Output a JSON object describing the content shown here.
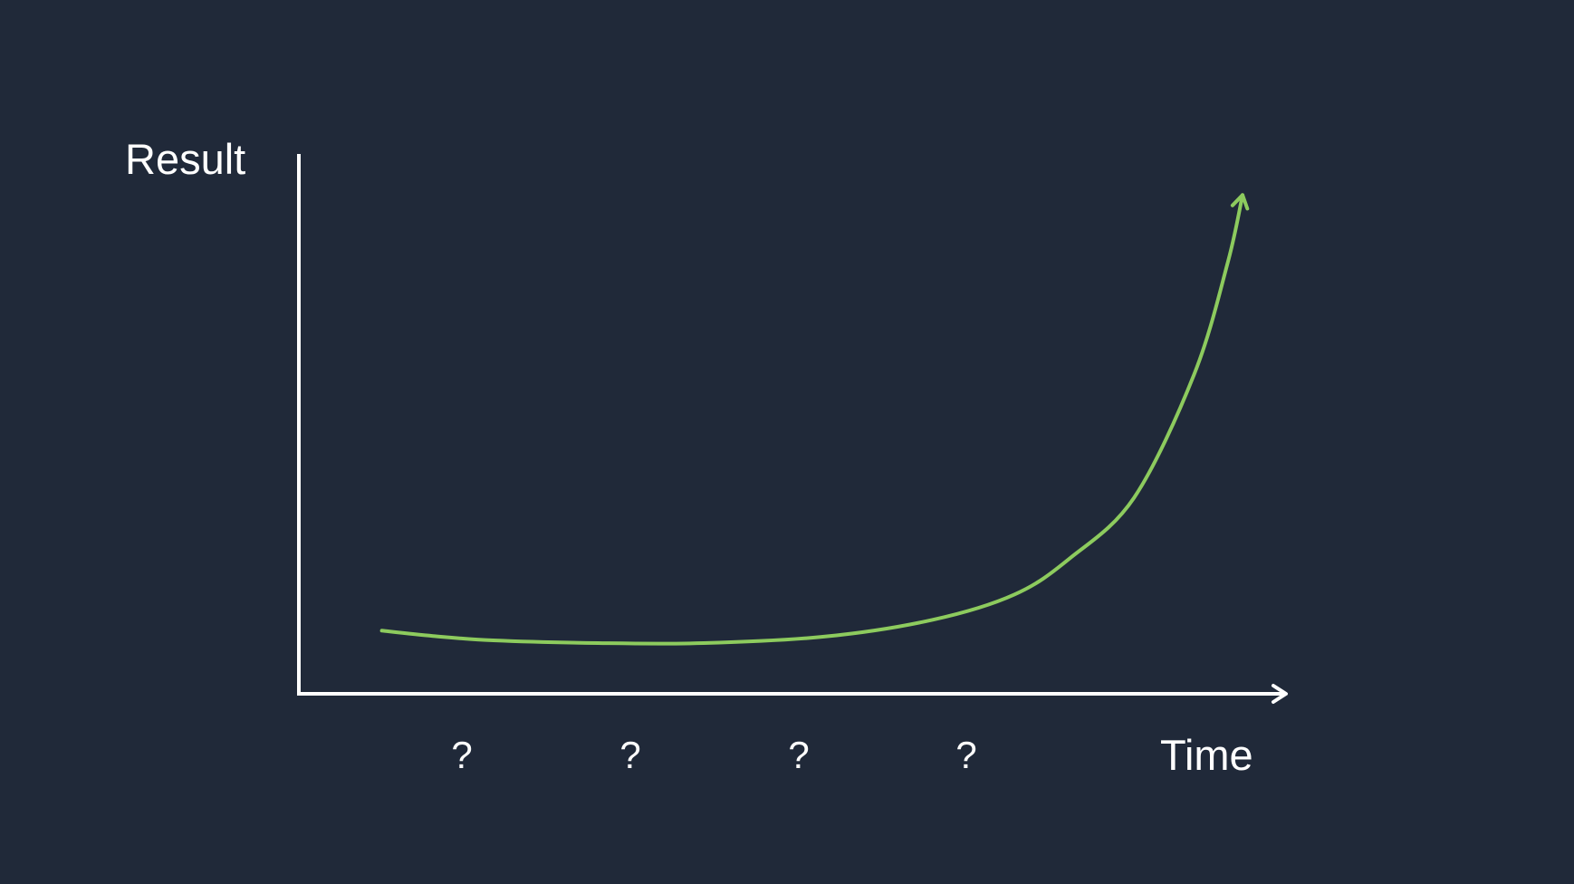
{
  "colors": {
    "background": "#202939",
    "axis": "#ffffff",
    "curve": "#8dcb5e",
    "text": "#ffffff"
  },
  "chart_data": {
    "type": "line",
    "title": "",
    "xlabel": "Time",
    "ylabel": "Result",
    "grid": false,
    "legend": "none",
    "x_tick_labels": [
      "?",
      "?",
      "?",
      "?"
    ],
    "xlim": [
      0,
      1
    ],
    "ylim": [
      0,
      1
    ],
    "series": [
      {
        "values": [
          [
            0.084,
            0.117
          ],
          [
            0.136,
            0.107
          ],
          [
            0.197,
            0.099
          ],
          [
            0.303,
            0.094
          ],
          [
            0.41,
            0.094
          ],
          [
            0.533,
            0.106
          ],
          [
            0.642,
            0.137
          ],
          [
            0.725,
            0.184
          ],
          [
            0.781,
            0.251
          ],
          [
            0.846,
            0.363
          ],
          [
            0.907,
            0.592
          ],
          [
            0.941,
            0.799
          ],
          [
            0.956,
            0.924
          ]
        ]
      }
    ]
  }
}
